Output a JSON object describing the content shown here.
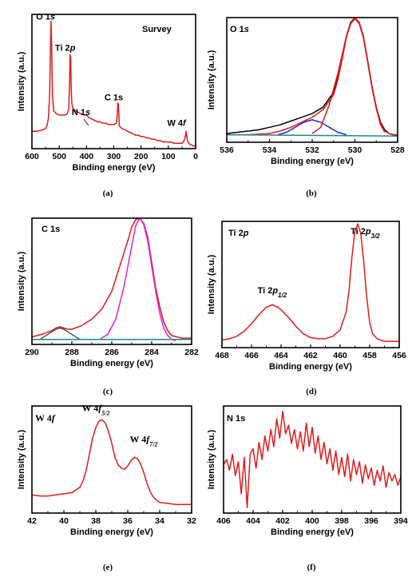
{
  "captions": [
    "(a)",
    "(b)",
    "(c)",
    "(d)",
    "(e)",
    "(f)"
  ],
  "chart_data": [
    {
      "id": "a",
      "type": "line",
      "xlabel": "Binding energy (eV)",
      "ylabel": "Intensity (a.u.)",
      "xlim": [
        600,
        0
      ],
      "ylim": [
        0,
        1
      ],
      "xticks": [
        600,
        500,
        400,
        300,
        200,
        100,
        0
      ],
      "title": "Survey",
      "annotations": [
        {
          "text": "O 1",
          "italic": "s",
          "x": 550,
          "y": 0.96
        },
        {
          "text": "Ti 2",
          "italic": "p",
          "x": 478,
          "y": 0.73
        },
        {
          "text": "N 1",
          "italic": "s",
          "x": 420,
          "y": 0.25
        },
        {
          "text": "C 1s",
          "italic": "",
          "x": 300,
          "y": 0.36
        },
        {
          "text": "W 4",
          "italic": "f",
          "x": 70,
          "y": 0.17
        }
      ],
      "series": [
        {
          "color": "#e01b1b",
          "x": [
            600,
            590,
            580,
            570,
            560,
            550,
            545,
            540,
            535,
            532,
            530,
            528,
            525,
            520,
            510,
            500,
            490,
            480,
            470,
            465,
            462,
            460,
            458,
            456,
            454,
            450,
            440,
            430,
            420,
            410,
            400,
            395,
            390,
            380,
            370,
            360,
            350,
            340,
            330,
            320,
            310,
            300,
            290,
            287,
            285,
            283,
            281,
            280,
            275,
            270,
            260,
            250,
            240,
            230,
            220,
            210,
            200,
            190,
            180,
            170,
            160,
            150,
            140,
            130,
            120,
            110,
            100,
            90,
            80,
            70,
            60,
            50,
            45,
            40,
            37,
            35,
            33,
            30,
            25,
            20,
            15,
            10,
            5,
            0
          ],
          "y": [
            0.13,
            0.13,
            0.13,
            0.135,
            0.14,
            0.15,
            0.17,
            0.22,
            0.4,
            0.75,
            0.95,
            0.8,
            0.4,
            0.28,
            0.26,
            0.25,
            0.25,
            0.25,
            0.26,
            0.3,
            0.5,
            0.7,
            0.68,
            0.45,
            0.34,
            0.3,
            0.28,
            0.27,
            0.26,
            0.25,
            0.25,
            0.24,
            0.23,
            0.22,
            0.21,
            0.2,
            0.2,
            0.19,
            0.19,
            0.18,
            0.18,
            0.18,
            0.19,
            0.25,
            0.34,
            0.33,
            0.24,
            0.17,
            0.16,
            0.15,
            0.14,
            0.13,
            0.12,
            0.11,
            0.1,
            0.1,
            0.09,
            0.09,
            0.08,
            0.08,
            0.07,
            0.07,
            0.06,
            0.06,
            0.05,
            0.05,
            0.05,
            0.05,
            0.04,
            0.04,
            0.04,
            0.04,
            0.05,
            0.07,
            0.1,
            0.13,
            0.1,
            0.06,
            0.04,
            0.03,
            0.03,
            0.02,
            0.02,
            0.02
          ]
        }
      ]
    },
    {
      "id": "b",
      "type": "line",
      "xlabel": "Binding energy (eV)",
      "ylabel": "Intensity (a.u.)",
      "xlim": [
        536,
        528
      ],
      "ylim": [
        0,
        1
      ],
      "xticks": [
        536,
        534,
        532,
        530,
        528
      ],
      "title": "O 1",
      "title_italic": "s",
      "series": [
        {
          "color": "#000000",
          "x": [
            536,
            535.5,
            535,
            534.5,
            534,
            533.5,
            533,
            532.5,
            532,
            531.5,
            531,
            530.8,
            530.6,
            530.4,
            530.2,
            530,
            529.8,
            529.6,
            529.4,
            529.2,
            529,
            528.8,
            528.6,
            528.4,
            528.2,
            528
          ],
          "y": [
            0.07,
            0.08,
            0.09,
            0.1,
            0.12,
            0.14,
            0.17,
            0.2,
            0.23,
            0.28,
            0.4,
            0.52,
            0.68,
            0.85,
            0.96,
            1.0,
            0.96,
            0.85,
            0.65,
            0.45,
            0.28,
            0.16,
            0.1,
            0.07,
            0.06,
            0.06
          ]
        },
        {
          "color": "#e01b1b",
          "x": [
            536,
            535,
            534,
            533.5,
            533,
            532.5,
            532,
            531.5,
            531,
            530.8,
            530.6,
            530.4,
            530.2,
            530,
            529.8,
            529.6,
            529.4,
            529.2,
            529,
            528.8,
            528.6,
            528.4,
            528.2,
            528
          ],
          "y": [
            0.06,
            0.06,
            0.07,
            0.09,
            0.12,
            0.16,
            0.2,
            0.26,
            0.38,
            0.5,
            0.66,
            0.84,
            0.95,
            1.0,
            0.96,
            0.84,
            0.64,
            0.44,
            0.27,
            0.15,
            0.09,
            0.07,
            0.06,
            0.06
          ]
        },
        {
          "color": "#1a2fd6",
          "x": [
            533.6,
            533.2,
            532.8,
            532.4,
            532.0,
            531.6,
            531.2,
            530.8,
            530.4
          ],
          "y": [
            0.06,
            0.08,
            0.12,
            0.16,
            0.18,
            0.16,
            0.12,
            0.08,
            0.06
          ]
        },
        {
          "color": "#e01b1b",
          "x": [
            532.0,
            531.6,
            531.2,
            530.8,
            530.6,
            530.4,
            530.2,
            530.0,
            529.8,
            529.6,
            529.4,
            529.2,
            529.0,
            528.8,
            528.6
          ],
          "y": [
            0.07,
            0.12,
            0.3,
            0.55,
            0.7,
            0.85,
            0.95,
            0.99,
            0.95,
            0.84,
            0.64,
            0.44,
            0.27,
            0.14,
            0.08
          ]
        },
        {
          "color": "#1a8a8a",
          "x": [
            536,
            528
          ],
          "y": [
            0.06,
            0.05
          ]
        }
      ]
    },
    {
      "id": "c",
      "type": "line",
      "xlabel": "Binding energy (eV)",
      "ylabel": "Intensity (a.u.)",
      "xlim": [
        290,
        282
      ],
      "ylim": [
        0,
        1
      ],
      "xticks": [
        290,
        288,
        286,
        284,
        282
      ],
      "title": "C 1s",
      "series": [
        {
          "color": "#e01b1b",
          "x": [
            290,
            289.5,
            289,
            288.8,
            288.6,
            288.4,
            288.2,
            288,
            287.5,
            287,
            286.5,
            286,
            285.6,
            285.2,
            285,
            284.8,
            284.6,
            284.4,
            284.2,
            284,
            283.8,
            283.6,
            283.4,
            283.2,
            283,
            282.5,
            282
          ],
          "y": [
            0.06,
            0.08,
            0.11,
            0.13,
            0.14,
            0.13,
            0.12,
            0.12,
            0.15,
            0.2,
            0.28,
            0.42,
            0.62,
            0.82,
            0.93,
            0.99,
            1.0,
            0.96,
            0.85,
            0.65,
            0.45,
            0.3,
            0.18,
            0.11,
            0.07,
            0.05,
            0.05
          ]
        },
        {
          "color": "#e020e0",
          "x": [
            286.6,
            286.2,
            285.8,
            285.4,
            285.0,
            284.8,
            284.6,
            284.4,
            284.2,
            284.0,
            283.8,
            283.6,
            283.4,
            283.2,
            283.0,
            282.8
          ],
          "y": [
            0.04,
            0.08,
            0.2,
            0.45,
            0.78,
            0.94,
            1.0,
            0.95,
            0.82,
            0.62,
            0.42,
            0.25,
            0.13,
            0.07,
            0.04,
            0.03
          ]
        },
        {
          "color": "#555555",
          "x": [
            289.6,
            289.2,
            288.8,
            288.6,
            288.4,
            288.0,
            287.6
          ],
          "y": [
            0.04,
            0.08,
            0.12,
            0.13,
            0.12,
            0.08,
            0.04
          ]
        },
        {
          "color": "#1a8a8a",
          "x": [
            290,
            282
          ],
          "y": [
            0.04,
            0.04
          ]
        }
      ]
    },
    {
      "id": "d",
      "type": "line",
      "xlabel": "Binding energy (eV)",
      "ylabel": "Intensity (a.u.)",
      "xlim": [
        468,
        456
      ],
      "ylim": [
        0,
        1
      ],
      "xticks": [
        468,
        466,
        464,
        462,
        460,
        458,
        456
      ],
      "title": "Ti 2",
      "title_italic": "p",
      "annotations": [
        {
          "text": "Ti 2",
          "italic": "p",
          "sub": "3/2",
          "x": 458.3,
          "y": 0.9
        },
        {
          "text": "Ti 2",
          "italic": "p",
          "sub": "1/2",
          "x": 464.6,
          "y": 0.43
        }
      ],
      "series": [
        {
          "color": "#e01b1b",
          "x": [
            468,
            467.5,
            467,
            466.5,
            466,
            465.5,
            465,
            464.8,
            464.6,
            464.4,
            464.2,
            464,
            463.5,
            463,
            462.5,
            462,
            461.5,
            461,
            460.5,
            460,
            459.6,
            459.4,
            459.2,
            459,
            458.8,
            458.6,
            458.4,
            458.2,
            458,
            457.8,
            457.5,
            457,
            456.5,
            456
          ],
          "y": [
            0.06,
            0.07,
            0.09,
            0.13,
            0.19,
            0.26,
            0.32,
            0.33,
            0.34,
            0.33,
            0.32,
            0.3,
            0.24,
            0.17,
            0.11,
            0.08,
            0.07,
            0.07,
            0.09,
            0.14,
            0.28,
            0.45,
            0.72,
            0.92,
            0.98,
            0.9,
            0.68,
            0.4,
            0.2,
            0.11,
            0.07,
            0.05,
            0.05,
            0.05
          ]
        }
      ]
    },
    {
      "id": "e",
      "type": "line",
      "xlabel": "Binding energy (eV)",
      "ylabel": "Intensity (a.u.)",
      "xlim": [
        42,
        32
      ],
      "ylim": [
        0,
        1
      ],
      "xticks": [
        42,
        40,
        38,
        36,
        34,
        32
      ],
      "title": "W 4",
      "title_italic": "f",
      "annotations": [
        {
          "text": "W 4",
          "italic": "f",
          "sub": "5/2",
          "x": 38.0,
          "y": 0.95
        },
        {
          "text": "W 4",
          "italic": "f",
          "sub": "7/2",
          "x": 35.0,
          "y": 0.66
        }
      ],
      "series": [
        {
          "color": "#e01b1b",
          "x": [
            42,
            41.5,
            41,
            40.5,
            40,
            39.5,
            39,
            38.8,
            38.6,
            38.4,
            38.2,
            38,
            37.8,
            37.6,
            37.4,
            37.2,
            37,
            36.8,
            36.6,
            36.4,
            36.2,
            36,
            35.8,
            35.6,
            35.4,
            35.2,
            35,
            34.8,
            34.6,
            34.4,
            34.2,
            34,
            33.5,
            33,
            32.5,
            32
          ],
          "y": [
            0.17,
            0.16,
            0.16,
            0.17,
            0.18,
            0.19,
            0.24,
            0.3,
            0.4,
            0.55,
            0.7,
            0.8,
            0.86,
            0.87,
            0.84,
            0.76,
            0.65,
            0.52,
            0.45,
            0.42,
            0.41,
            0.44,
            0.49,
            0.52,
            0.51,
            0.46,
            0.38,
            0.28,
            0.2,
            0.15,
            0.12,
            0.1,
            0.09,
            0.08,
            0.08,
            0.08
          ]
        }
      ]
    },
    {
      "id": "f",
      "type": "line",
      "xlabel": "Binding energy (eV)",
      "ylabel": "Intensity (a.u.)",
      "xlim": [
        406,
        394
      ],
      "ylim": [
        0,
        1
      ],
      "xticks": [
        406,
        404,
        402,
        400,
        398,
        396,
        394
      ],
      "title": "N 1s",
      "series": [
        {
          "color": "#e01b1b",
          "x": [
            406,
            405.8,
            405.6,
            405.4,
            405.2,
            405,
            404.8,
            404.6,
            404.4,
            404.2,
            404,
            403.8,
            403.6,
            403.4,
            403.2,
            403,
            402.8,
            402.6,
            402.4,
            402.2,
            402,
            401.8,
            401.6,
            401.4,
            401.2,
            401,
            400.8,
            400.6,
            400.4,
            400.2,
            400,
            399.8,
            399.6,
            399.4,
            399.2,
            399,
            398.8,
            398.6,
            398.4,
            398.2,
            398,
            397.8,
            397.6,
            397.4,
            397.2,
            397,
            396.8,
            396.6,
            396.4,
            396.2,
            396,
            395.8,
            395.6,
            395.4,
            395.2,
            395,
            394.8,
            394.6,
            394.4,
            394.2,
            394
          ],
          "y": [
            0.45,
            0.5,
            0.4,
            0.55,
            0.35,
            0.48,
            0.18,
            0.52,
            0.05,
            0.55,
            0.6,
            0.42,
            0.66,
            0.5,
            0.72,
            0.58,
            0.78,
            0.62,
            0.88,
            0.7,
            0.95,
            0.74,
            0.82,
            0.65,
            0.78,
            0.6,
            0.76,
            0.58,
            0.84,
            0.62,
            0.8,
            0.56,
            0.72,
            0.5,
            0.66,
            0.46,
            0.6,
            0.4,
            0.58,
            0.36,
            0.52,
            0.34,
            0.55,
            0.3,
            0.5,
            0.36,
            0.48,
            0.28,
            0.45,
            0.32,
            0.42,
            0.26,
            0.4,
            0.3,
            0.44,
            0.24,
            0.38,
            0.3,
            0.36,
            0.26,
            0.34
          ]
        }
      ]
    }
  ]
}
